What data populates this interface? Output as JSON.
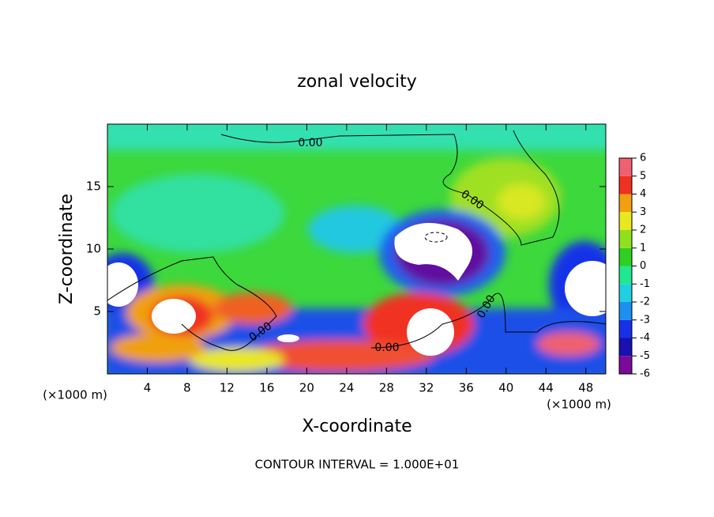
{
  "chart_data": {
    "type": "contour",
    "title": "zonal velocity",
    "x_label": "X-coordinate",
    "y_label": "Z-coordinate",
    "x_unit": "(×1000 m)",
    "y_unit": "(×1000 m)",
    "footer": "CONTOUR INTERVAL = 1.000E+01",
    "xlim": [
      0,
      50
    ],
    "xticks": [
      4,
      8,
      12,
      16,
      20,
      24,
      28,
      32,
      36,
      40,
      44,
      48
    ],
    "ylim": [
      0,
      20
    ],
    "yticks": [
      5,
      10,
      15
    ],
    "contour_labels": [
      "0.00",
      "0.00",
      "0.00",
      "0.00",
      "0.00"
    ],
    "colorbar": {
      "levels": [
        -6,
        -5,
        -4,
        -3,
        -2,
        -1,
        0,
        1,
        2,
        3,
        4,
        5,
        6
      ],
      "colors": [
        "#7a0a9a",
        "#1a10b0",
        "#1830e8",
        "#1c90f0",
        "#20d0e0",
        "#20e890",
        "#30d020",
        "#90e020",
        "#e8e820",
        "#f0a010",
        "#f03020",
        "#f06070"
      ]
    }
  }
}
